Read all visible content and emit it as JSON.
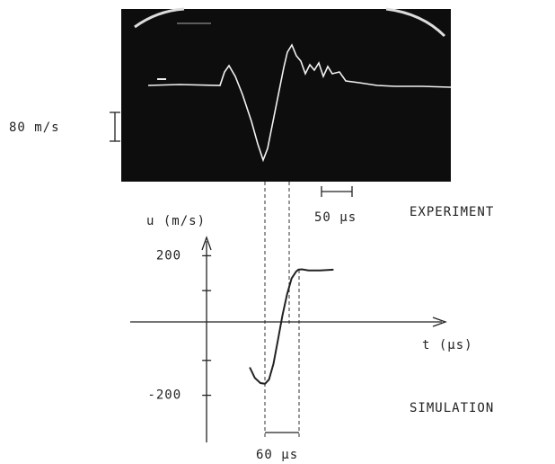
{
  "experiment": {
    "label": "EXPERIMENT",
    "scale_bar": "80 m/s",
    "time_bar": "50 µs"
  },
  "chart_data": {
    "type": "line",
    "title": "SIMULATION",
    "y_label": "u (m/s)",
    "x_label": "t (µs)",
    "annotation": "60 µs",
    "x": [
      76,
      85,
      95,
      103,
      110,
      118,
      126,
      134,
      142,
      150,
      158,
      162,
      168,
      180,
      200,
      224
    ],
    "series": [
      {
        "color": "#222",
        "values": [
          -120,
          -150,
          -165,
          -167,
          -155,
          -110,
          -40,
          30,
          90,
          135,
          155,
          160,
          161,
          158,
          158,
          160
        ]
      }
    ],
    "xlim": [
      -135,
      420
    ],
    "ylim": [
      -330,
      250
    ],
    "yticks": [
      -200,
      200
    ],
    "minor_yticks": [
      -100,
      100
    ]
  }
}
